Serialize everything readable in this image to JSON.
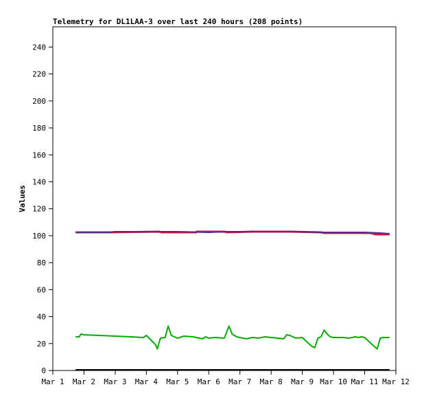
{
  "chart_data": {
    "type": "line",
    "title": "Telemetry for DL1LAA-3 over last 240 hours (208 points)",
    "xlabel": "",
    "ylabel": "Values",
    "x_ticks": [
      "Mar 1",
      "Mar 2",
      "Mar 3",
      "Mar 4",
      "Mar 5",
      "Mar 6",
      "Mar 7",
      "Mar 8",
      "Mar 9",
      "Mar 10",
      "Mar 11",
      "Mar 12"
    ],
    "y_ticks": [
      0,
      20,
      40,
      60,
      80,
      100,
      120,
      140,
      160,
      180,
      200,
      220,
      240
    ],
    "xlim": [
      0,
      11
    ],
    "ylim": [
      0,
      255
    ],
    "grid": false,
    "legend": "none",
    "series": [
      {
        "color": "#dc143c",
        "x": [
          0.73,
          1.8,
          3.4,
          3.5,
          4.6,
          4.61,
          5.5,
          5.6,
          6.4,
          7.6,
          8.6,
          8.7,
          9.5,
          10.2,
          10.35,
          10.8
        ],
        "y": [
          102.5,
          102.5,
          103,
          102.5,
          102.5,
          103,
          103,
          102.5,
          103,
          103,
          102.5,
          102,
          102,
          102,
          101,
          101
        ]
      },
      {
        "color": "#5a2a8a",
        "x": [
          0.73,
          1.0,
          1.8,
          2.0,
          3.0,
          3.4,
          4.0,
          5.0,
          5.6,
          6.0,
          7.0,
          8.0,
          8.5,
          9.0,
          9.5,
          10.0,
          10.5,
          10.8
        ],
        "y": [
          102.5,
          102.5,
          102.5,
          103,
          103,
          103,
          103,
          102.5,
          103,
          103,
          103,
          103,
          102.5,
          102.5,
          102.5,
          102.5,
          102,
          101.5
        ]
      },
      {
        "color": "#00aa00",
        "x": [
          0.73,
          0.85,
          0.9,
          1.0,
          1.5,
          2.0,
          2.5,
          2.9,
          3.0,
          3.3,
          3.35,
          3.45,
          3.6,
          3.7,
          3.8,
          3.9,
          4.0,
          4.2,
          4.5,
          4.7,
          4.8,
          4.9,
          5.0,
          5.2,
          5.5,
          5.6,
          5.65,
          5.75,
          5.9,
          6.0,
          6.2,
          6.4,
          6.6,
          6.8,
          7.0,
          7.2,
          7.4,
          7.5,
          7.6,
          7.8,
          8.0,
          8.3,
          8.4,
          8.5,
          8.6,
          8.7,
          8.8,
          8.9,
          9.0,
          9.3,
          9.5,
          9.7,
          9.8,
          9.9,
          10.0,
          10.3,
          10.4,
          10.5,
          10.6,
          10.8
        ],
        "y": [
          25,
          25,
          27,
          26.5,
          26,
          25.5,
          25,
          24.5,
          26,
          19,
          16,
          24,
          24.5,
          33,
          26,
          25,
          24,
          25.5,
          25,
          24,
          23.5,
          25,
          24,
          24.5,
          24,
          30,
          33,
          27,
          25,
          24.5,
          23.5,
          24.5,
          24,
          25,
          24.5,
          24,
          23.5,
          26.5,
          26,
          24,
          24.5,
          18,
          17,
          24,
          25,
          30,
          27,
          25,
          24.5,
          24.5,
          24,
          25,
          24.5,
          25,
          24.5,
          18,
          16,
          24,
          24.5,
          24.5
        ]
      },
      {
        "color": "#000000",
        "x": [
          0.73,
          10.8
        ],
        "y": [
          0.5,
          0.5
        ]
      }
    ]
  }
}
